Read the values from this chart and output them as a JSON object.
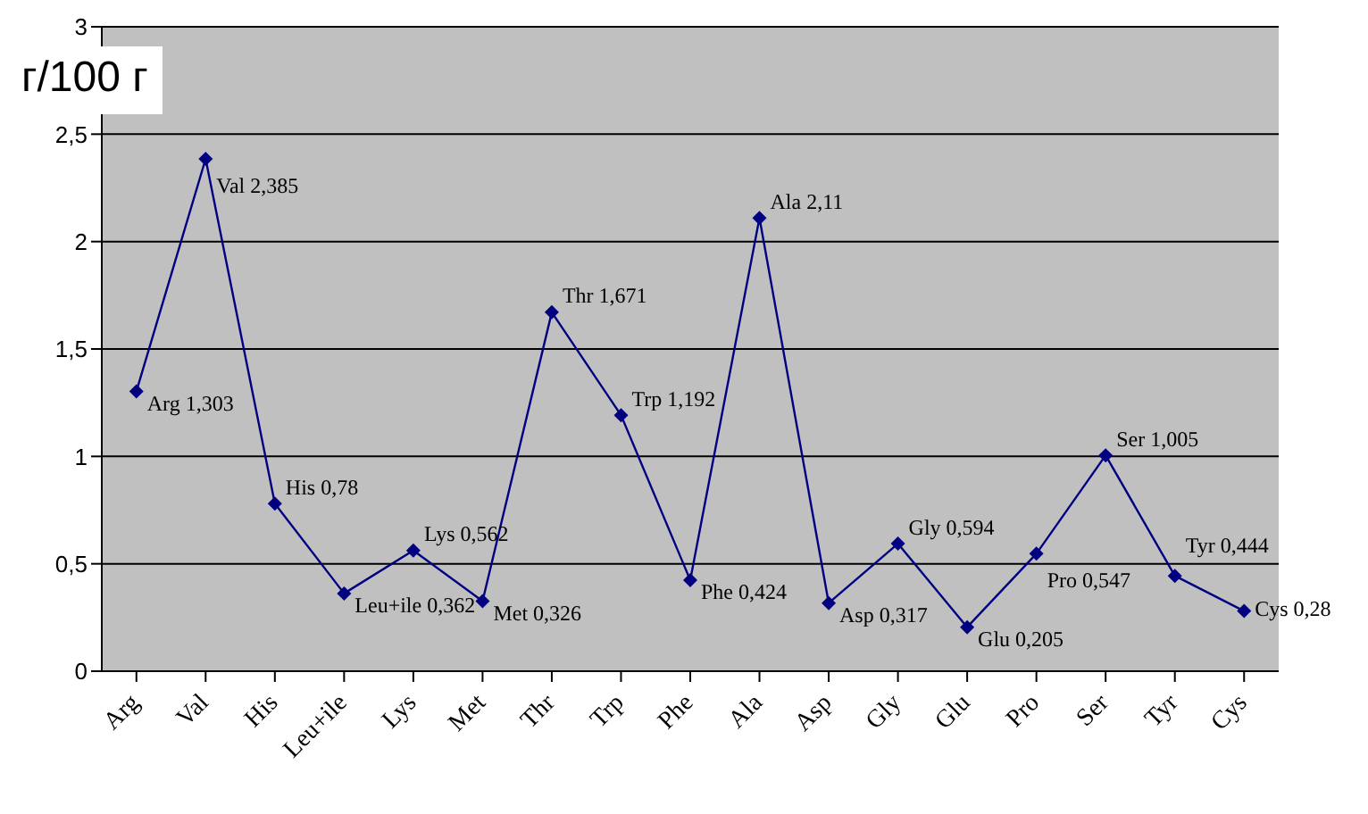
{
  "chart_data": {
    "type": "line",
    "ylabel": "г/100 г",
    "categories": [
      "Arg",
      "Val",
      "His",
      "Leu+ile",
      "Lys",
      "Met",
      "Thr",
      "Trp",
      "Phe",
      "Ala",
      "Asp",
      "Gly",
      "Glu",
      "Pro",
      "Ser",
      "Tyr",
      "Cys"
    ],
    "series": [
      {
        "color": "#000080",
        "values": [
          1.303,
          2.385,
          0.78,
          0.362,
          0.562,
          0.326,
          1.671,
          1.192,
          0.424,
          2.11,
          0.317,
          0.594,
          0.205,
          0.547,
          1.005,
          0.444,
          0.28
        ],
        "value_labels": [
          "Arg 1,303",
          "Val 2,385",
          "His 0,78",
          "Leu+ile 0,362",
          "Lys 0,562",
          "Met 0,326",
          "Thr 1,671",
          "Trp 1,192",
          "Phe 0,424",
          "Ala 2,11",
          "Asp 0,317",
          "Gly 0,594",
          "Glu 0,205",
          "Pro 0,547",
          "Ser 1,005",
          "Tyr 0,444",
          "Cys 0,28"
        ]
      }
    ],
    "ylim": [
      0,
      3
    ],
    "yticks": [
      0,
      {
        "value": 0.5,
        "label": "0,5"
      },
      1,
      {
        "value": 1.5,
        "label": "1,5"
      },
      2,
      {
        "value": 2.5,
        "label": "2,5"
      },
      3
    ],
    "grid": "y",
    "legend": false,
    "marker": "diamond",
    "line_style": "solid"
  }
}
